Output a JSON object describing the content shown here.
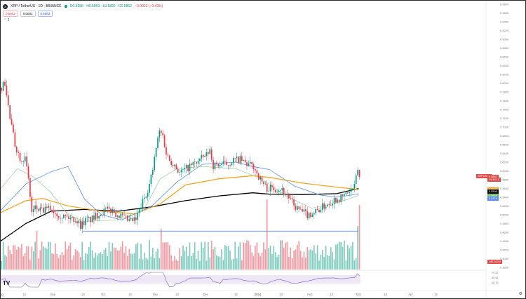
{
  "header": {
    "logo": "X",
    "symbol": "XRP / TetherUS · 1D · BINANCE",
    "open": "O0.5958",
    "high": "H0.5969",
    "low": "L0.5820",
    "close": "C0.5862",
    "change": "−0.0023 (−0.43%)",
    "sell_price": "0.5862",
    "spread": "0.0001",
    "buy_price": "0.5863",
    "collapse_glyph": "⌃ 2"
  },
  "footer": {
    "tv_logo": "TV",
    "settings_glyph": "⚙"
  },
  "colors": {
    "up": "#089981",
    "down": "#f23645",
    "ma_black": "#000000",
    "ma_orange": "#f5a623",
    "ma_blue": "#5b8def",
    "ma_green": "#a5d6a7",
    "support": "#5b8def"
  },
  "price_tags": {
    "symbol": "XRPUSDT",
    "last": "0.5862",
    "countdown": "10:45:11",
    "orange_ma": "0.5573",
    "black_ma": "0.5598",
    "green_ma": "0.5439",
    "blue_ma": "0.5474",
    "volume": "188.363M"
  },
  "chart_data": {
    "type": "candlestick",
    "price_axis": {
      "ticks": [
        "0.9800",
        "0.9600",
        "0.9400",
        "0.9200",
        "0.9000",
        "0.8800",
        "0.8600",
        "0.8400",
        "0.8200",
        "0.8000",
        "0.7800",
        "0.7600",
        "0.7400",
        "0.7200",
        "0.7000",
        "0.6800",
        "0.6600",
        "0.6400",
        "0.6200",
        "0.6000",
        "0.5800",
        "0.5600",
        "0.5400",
        "0.5200",
        "0.5000",
        "0.4800",
        "0.4600",
        "0.4400",
        "0.4200",
        "0.4000",
        "0.3800"
      ],
      "range": [
        0.375,
        0.985
      ]
    },
    "time_axis": {
      "labels": [
        "Aug",
        "14",
        "Sep",
        "18",
        "Oct",
        "16",
        "Nov",
        "13",
        "Dec",
        "18",
        "2024",
        "15",
        "Feb",
        "12",
        "Mar",
        "18",
        "Apr",
        "15"
      ],
      "label_days": [
        0,
        14,
        31,
        49,
        61,
        77,
        92,
        105,
        122,
        140,
        153,
        167,
        184,
        197,
        213,
        229,
        244,
        259
      ],
      "visible_days": 288
    },
    "support_level": {
      "price": 0.4625,
      "from_day": 49,
      "to_day": 213
    },
    "candle_anchors": [
      [
        0,
        0.79
      ],
      [
        2,
        0.8
      ],
      [
        5,
        0.72
      ],
      [
        8,
        0.66
      ],
      [
        11,
        0.63
      ],
      [
        14,
        0.628
      ],
      [
        16,
        0.58
      ],
      [
        18,
        0.505
      ],
      [
        20,
        0.515
      ],
      [
        24,
        0.508
      ],
      [
        29,
        0.515
      ],
      [
        32,
        0.505
      ],
      [
        36,
        0.498
      ],
      [
        40,
        0.493
      ],
      [
        44,
        0.49
      ],
      [
        47,
        0.476
      ],
      [
        50,
        0.487
      ],
      [
        54,
        0.49
      ],
      [
        58,
        0.503
      ],
      [
        62,
        0.51
      ],
      [
        66,
        0.51
      ],
      [
        68,
        0.503
      ],
      [
        72,
        0.494
      ],
      [
        76,
        0.485
      ],
      [
        80,
        0.488
      ],
      [
        84,
        0.53
      ],
      [
        88,
        0.568
      ],
      [
        90,
        0.603
      ],
      [
        92,
        0.652
      ],
      [
        94,
        0.69
      ],
      [
        96,
        0.68
      ],
      [
        98,
        0.64
      ],
      [
        100,
        0.625
      ],
      [
        103,
        0.615
      ],
      [
        106,
        0.595
      ],
      [
        110,
        0.605
      ],
      [
        114,
        0.615
      ],
      [
        118,
        0.625
      ],
      [
        122,
        0.636
      ],
      [
        124,
        0.648
      ],
      [
        126,
        0.612
      ],
      [
        130,
        0.615
      ],
      [
        134,
        0.615
      ],
      [
        138,
        0.625
      ],
      [
        142,
        0.625
      ],
      [
        146,
        0.615
      ],
      [
        150,
        0.61
      ],
      [
        154,
        0.58
      ],
      [
        158,
        0.56
      ],
      [
        162,
        0.56
      ],
      [
        166,
        0.56
      ],
      [
        170,
        0.545
      ],
      [
        174,
        0.52
      ],
      [
        178,
        0.508
      ],
      [
        182,
        0.5
      ],
      [
        186,
        0.505
      ],
      [
        190,
        0.515
      ],
      [
        194,
        0.525
      ],
      [
        198,
        0.535
      ],
      [
        202,
        0.538
      ],
      [
        206,
        0.55
      ],
      [
        210,
        0.562
      ],
      [
        212,
        0.605
      ],
      [
        213,
        0.586
      ]
    ],
    "volume_spikes": [
      [
        21,
        0.55
      ],
      [
        95,
        0.58
      ],
      [
        158,
        1.0
      ],
      [
        213,
        0.92
      ],
      [
        212,
        0.62
      ]
    ],
    "rsi": {
      "levels": [
        "70.22",
        "56.93",
        "48.79"
      ],
      "band": [
        30,
        70
      ]
    },
    "moving_averages": [
      {
        "color": "ma_black",
        "points": [
          [
            0,
            0.44
          ],
          [
            15,
            0.48
          ],
          [
            30,
            0.508
          ],
          [
            50,
            0.512
          ],
          [
            70,
            0.508
          ],
          [
            90,
            0.518
          ],
          [
            110,
            0.532
          ],
          [
            130,
            0.543
          ],
          [
            150,
            0.55
          ],
          [
            160,
            0.547
          ],
          [
            180,
            0.546
          ],
          [
            200,
            0.548
          ],
          [
            213,
            0.5598
          ]
        ]
      },
      {
        "color": "ma_orange",
        "points": [
          [
            0,
            0.505
          ],
          [
            15,
            0.532
          ],
          [
            25,
            0.537
          ],
          [
            40,
            0.52
          ],
          [
            60,
            0.508
          ],
          [
            80,
            0.502
          ],
          [
            95,
            0.525
          ],
          [
            110,
            0.568
          ],
          [
            130,
            0.582
          ],
          [
            150,
            0.589
          ],
          [
            160,
            0.585
          ],
          [
            180,
            0.572
          ],
          [
            200,
            0.563
          ],
          [
            213,
            0.5573
          ]
        ]
      },
      {
        "color": "ma_blue",
        "points": [
          [
            0,
            0.51
          ],
          [
            15,
            0.57
          ],
          [
            30,
            0.598
          ],
          [
            40,
            0.61
          ],
          [
            50,
            0.535
          ],
          [
            60,
            0.5
          ],
          [
            72,
            0.488
          ],
          [
            90,
            0.52
          ],
          [
            105,
            0.575
          ],
          [
            120,
            0.615
          ],
          [
            140,
            0.62
          ],
          [
            150,
            0.61
          ],
          [
            160,
            0.603
          ],
          [
            175,
            0.565
          ],
          [
            190,
            0.545
          ],
          [
            200,
            0.54
          ],
          [
            213,
            0.5474
          ]
        ]
      },
      {
        "color": "ma_green",
        "points": [
          [
            0,
            0.56
          ],
          [
            10,
            0.605
          ],
          [
            20,
            0.585
          ],
          [
            30,
            0.55
          ],
          [
            40,
            0.5
          ],
          [
            50,
            0.485
          ],
          [
            70,
            0.488
          ],
          [
            85,
            0.51
          ],
          [
            95,
            0.582
          ],
          [
            105,
            0.605
          ],
          [
            120,
            0.61
          ],
          [
            140,
            0.605
          ],
          [
            155,
            0.582
          ],
          [
            170,
            0.543
          ],
          [
            185,
            0.515
          ],
          [
            200,
            0.527
          ],
          [
            213,
            0.5439
          ]
        ]
      }
    ]
  }
}
